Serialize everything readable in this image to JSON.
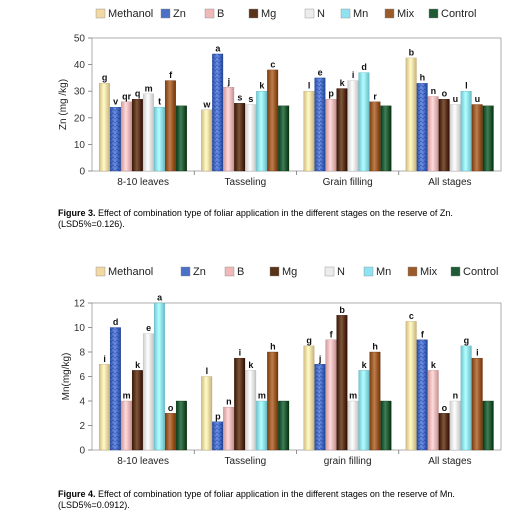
{
  "colors": {
    "Methanol": "#f2d9a3",
    "Zn": "#4a70c8",
    "B": "#f0b8b8",
    "Mg": "#5a3318",
    "N": "#ececec",
    "Mn": "#8fe3f0",
    "Mix": "#9a5a2a",
    "Control": "#1e5a34"
  },
  "chart_data": [
    {
      "type": "bar",
      "title": "",
      "xlabel": "",
      "ylabel": "Zn (mg /kg)",
      "ylim": [
        0,
        50
      ],
      "yticks": [
        "0",
        "10",
        "20",
        "30",
        "40",
        "50"
      ],
      "legend_position": "top",
      "categories": [
        "8-10 leaves",
        "Tasseling",
        "Grain filling",
        "All stages"
      ],
      "series": [
        {
          "name": "Methanol",
          "values": [
            33,
            23,
            30,
            42.5
          ],
          "labels": [
            "g",
            "w",
            "l",
            "b"
          ]
        },
        {
          "name": "Zn",
          "values": [
            24,
            44,
            35,
            33
          ],
          "labels": [
            "v",
            "a",
            "e",
            "h"
          ]
        },
        {
          "name": "B",
          "values": [
            26,
            31.5,
            27,
            28
          ],
          "labels": [
            "qr",
            "j",
            "p",
            "n"
          ]
        },
        {
          "name": "Mg",
          "values": [
            27,
            25.5,
            31,
            27
          ],
          "labels": [
            "q",
            "s",
            "k",
            "o"
          ]
        },
        {
          "name": "N",
          "values": [
            29,
            25,
            34,
            25
          ],
          "labels": [
            "m",
            "s",
            "i",
            "u"
          ]
        },
        {
          "name": "Mn",
          "values": [
            24,
            30,
            37,
            30
          ],
          "labels": [
            "t",
            "k",
            "d",
            "l"
          ]
        },
        {
          "name": "Mix",
          "values": [
            34,
            38,
            26,
            25
          ],
          "labels": [
            "f",
            "c",
            "r",
            "u"
          ]
        },
        {
          "name": "Control",
          "values": [
            24.5,
            24.5,
            24.5,
            24.5
          ],
          "labels": [
            "",
            "",
            "",
            ""
          ]
        }
      ],
      "caption_label": "Figure 3.",
      "caption_text": " Effect of combination type of foliar application in the different stages on the reserve of Zn. (LSD5%=0.126)."
    },
    {
      "type": "bar",
      "title": "",
      "xlabel": "",
      "ylabel": "Mn(mg/kg)",
      "ylim": [
        0,
        12
      ],
      "yticks": [
        "0",
        "2",
        "4",
        "6",
        "8",
        "10",
        "12"
      ],
      "legend_position": "top",
      "categories": [
        "8-10 leaves",
        "Tasseling",
        "grain filling",
        "All stages"
      ],
      "series": [
        {
          "name": "Methanol",
          "values": [
            7,
            6,
            8.5,
            10.5
          ],
          "labels": [
            "i",
            "l",
            "g",
            "c"
          ]
        },
        {
          "name": "Zn",
          "values": [
            10,
            2.3,
            7,
            9
          ],
          "labels": [
            "d",
            "p",
            "j",
            "f"
          ]
        },
        {
          "name": "B",
          "values": [
            4,
            3.5,
            9,
            6.5
          ],
          "labels": [
            "m",
            "n",
            "f",
            "k"
          ]
        },
        {
          "name": "Mg",
          "values": [
            6.5,
            7.5,
            11,
            3
          ],
          "labels": [
            "k",
            "i",
            "b",
            "o"
          ]
        },
        {
          "name": "N",
          "values": [
            9.5,
            6.5,
            4,
            4
          ],
          "labels": [
            "e",
            "k",
            "m",
            "n"
          ]
        },
        {
          "name": "Mn",
          "values": [
            12,
            4,
            6.5,
            8.5
          ],
          "labels": [
            "a",
            "m",
            "k",
            "g"
          ]
        },
        {
          "name": "Mix",
          "values": [
            3,
            8,
            8,
            7.5
          ],
          "labels": [
            "o",
            "h",
            "h",
            "i"
          ]
        },
        {
          "name": "Control",
          "values": [
            4,
            4,
            4,
            4
          ],
          "labels": [
            "",
            "",
            "",
            ""
          ]
        }
      ],
      "caption_label": "Figure 4.",
      "caption_text": " Effect of combination type of foliar application in the different stages on the reserve of Mn. (LSD5%=0.0912)."
    }
  ]
}
